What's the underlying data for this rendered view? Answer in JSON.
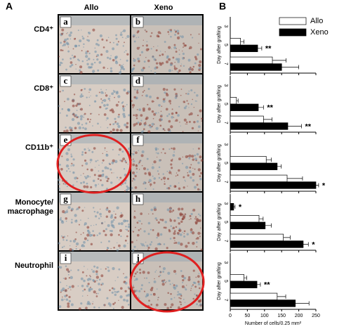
{
  "panel_a": {
    "label": "A",
    "columns": [
      "Allo",
      "Xeno"
    ],
    "rows": [
      [
        "CD4⁺"
      ],
      [
        "CD8⁺"
      ],
      [
        "CD11b⁺"
      ],
      [
        "Monocyte/",
        "macrophage"
      ],
      [
        "Neutrophil"
      ]
    ],
    "letters": [
      [
        "a",
        "b"
      ],
      [
        "c",
        "d"
      ],
      [
        "e",
        "f"
      ],
      [
        "g",
        "h"
      ],
      [
        "i",
        "j"
      ]
    ]
  },
  "panel_b_label": "B",
  "chart_data": [
    {
      "type": "hbar",
      "ylabel": "Day after grafting",
      "categories": [
        "3",
        "5",
        "7"
      ],
      "xlim": [
        0,
        250
      ],
      "xticks": [
        0,
        50,
        100,
        150,
        200,
        250
      ],
      "series": [
        {
          "name": "Allo",
          "color": "#ffffff",
          "values": [
            0,
            30,
            123
          ],
          "errors": [
            0,
            10,
            40
          ]
        },
        {
          "name": "Xeno",
          "color": "#000000",
          "values": [
            0,
            80,
            150
          ],
          "errors": [
            0,
            12,
            50
          ],
          "labels": [
            null,
            "**",
            null
          ]
        }
      ]
    },
    {
      "type": "hbar",
      "ylabel": "Day after grafting",
      "categories": [
        "3",
        "5",
        "7"
      ],
      "xlim": [
        0,
        250
      ],
      "xticks": [
        0,
        50,
        100,
        150,
        200,
        250
      ],
      "series": [
        {
          "color": "#ffffff",
          "values": [
            0,
            18,
            97
          ],
          "errors": [
            0,
            5,
            25
          ]
        },
        {
          "color": "#000000",
          "values": [
            0,
            82,
            168
          ],
          "errors": [
            0,
            15,
            40
          ],
          "labels": [
            null,
            "**",
            "**"
          ]
        }
      ]
    },
    {
      "type": "hbar",
      "ylabel": "Day after grafting",
      "categories": [
        "3",
        "5",
        "7"
      ],
      "xlim": [
        0,
        250
      ],
      "xticks": [
        0,
        50,
        100,
        150,
        200,
        250
      ],
      "series": [
        {
          "color": "#ffffff",
          "values": [
            0,
            105,
            166
          ],
          "errors": [
            0,
            15,
            45
          ]
        },
        {
          "color": "#000000",
          "values": [
            0,
            137,
            250
          ],
          "errors": [
            0,
            12,
            8
          ],
          "labels": [
            null,
            null,
            "*"
          ]
        }
      ]
    },
    {
      "type": "hbar",
      "ylabel": "Day after grafting",
      "categories": [
        "3",
        "5",
        "7"
      ],
      "xlim": [
        0,
        250
      ],
      "xticks": [
        0,
        50,
        100,
        150,
        200,
        250
      ],
      "series": [
        {
          "color": "#ffffff",
          "values": [
            0,
            84,
            155
          ],
          "errors": [
            0,
            12,
            20
          ]
        },
        {
          "color": "#000000",
          "values": [
            10,
            102,
            213
          ],
          "errors": [
            4,
            18,
            15
          ],
          "labels": [
            "*",
            null,
            "*"
          ]
        }
      ]
    },
    {
      "type": "hbar",
      "ylabel": "Day after grafting",
      "xlabel": "Number of cells/0.25 mm²",
      "categories": [
        "3",
        "5",
        "7"
      ],
      "xlim": [
        0,
        250
      ],
      "xticks": [
        0,
        50,
        100,
        150,
        200,
        250
      ],
      "series": [
        {
          "color": "#ffffff",
          "values": [
            0,
            40,
            137
          ],
          "errors": [
            0,
            8,
            25
          ]
        },
        {
          "color": "#000000",
          "values": [
            0,
            78,
            190
          ],
          "errors": [
            0,
            10,
            40
          ],
          "labels": [
            null,
            "**",
            null
          ]
        }
      ]
    }
  ]
}
